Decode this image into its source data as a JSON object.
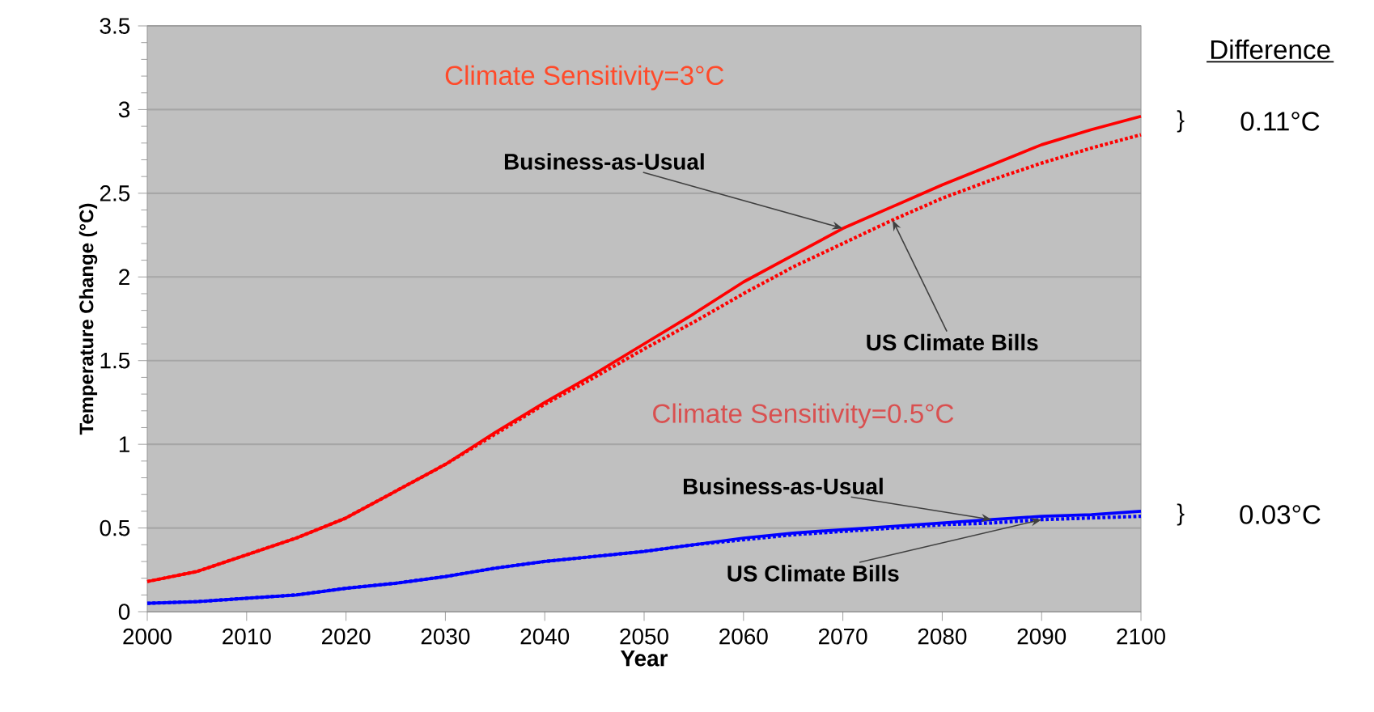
{
  "chart_data": {
    "type": "line",
    "xlabel": "Year",
    "ylabel": "Temperature Change (°C)",
    "xlim": [
      2000,
      2100
    ],
    "xticks": [
      2000,
      2010,
      2020,
      2030,
      2040,
      2050,
      2060,
      2070,
      2080,
      2090,
      2100
    ],
    "ylim": [
      0,
      3.5
    ],
    "yticks": [
      0,
      0.5,
      1,
      1.5,
      2,
      2.5,
      3,
      3.5
    ],
    "grid": "y",
    "marker": "none",
    "x": [
      2000,
      2005,
      2010,
      2015,
      2020,
      2025,
      2030,
      2035,
      2040,
      2045,
      2050,
      2055,
      2060,
      2065,
      2070,
      2075,
      2080,
      2085,
      2090,
      2095,
      2100
    ],
    "series": [
      {
        "color": "#ff0000",
        "line_style": "solid",
        "values": [
          0.18,
          0.24,
          0.34,
          0.44,
          0.56,
          0.72,
          0.88,
          1.07,
          1.25,
          1.42,
          1.6,
          1.78,
          1.97,
          2.13,
          2.29,
          2.42,
          2.55,
          2.67,
          2.79,
          2.88,
          2.96
        ]
      },
      {
        "color": "#ff0000",
        "line_style": "dotted",
        "values": [
          0.18,
          0.24,
          0.34,
          0.44,
          0.56,
          0.72,
          0.88,
          1.06,
          1.24,
          1.4,
          1.57,
          1.73,
          1.9,
          2.06,
          2.2,
          2.34,
          2.47,
          2.58,
          2.68,
          2.77,
          2.85
        ]
      },
      {
        "color": "#0000ff",
        "line_style": "solid",
        "values": [
          0.05,
          0.06,
          0.08,
          0.1,
          0.14,
          0.17,
          0.21,
          0.26,
          0.3,
          0.33,
          0.36,
          0.4,
          0.44,
          0.47,
          0.49,
          0.51,
          0.53,
          0.55,
          0.57,
          0.58,
          0.6
        ]
      },
      {
        "color": "#0000ff",
        "line_style": "dotted",
        "values": [
          0.05,
          0.06,
          0.08,
          0.1,
          0.14,
          0.17,
          0.21,
          0.26,
          0.3,
          0.33,
          0.36,
          0.4,
          0.43,
          0.46,
          0.48,
          0.5,
          0.52,
          0.53,
          0.55,
          0.56,
          0.57
        ]
      }
    ],
    "annotations": [
      "Climate Sensitivity=3°C",
      "Climate Sensitivity=0.5°C",
      {
        "text": "Business-as-Usual",
        "x": 2070,
        "y": 2.29
      },
      {
        "text": "US Climate Bills",
        "x": 2075,
        "y": 2.34
      },
      {
        "text": "Business-as-Usual",
        "x": 2085,
        "y": 0.55
      },
      {
        "text": "US Climate Bills",
        "x": 2090,
        "y": 0.55
      },
      "Difference",
      "0.11°C",
      "0.03°C",
      "}",
      "}"
    ]
  }
}
